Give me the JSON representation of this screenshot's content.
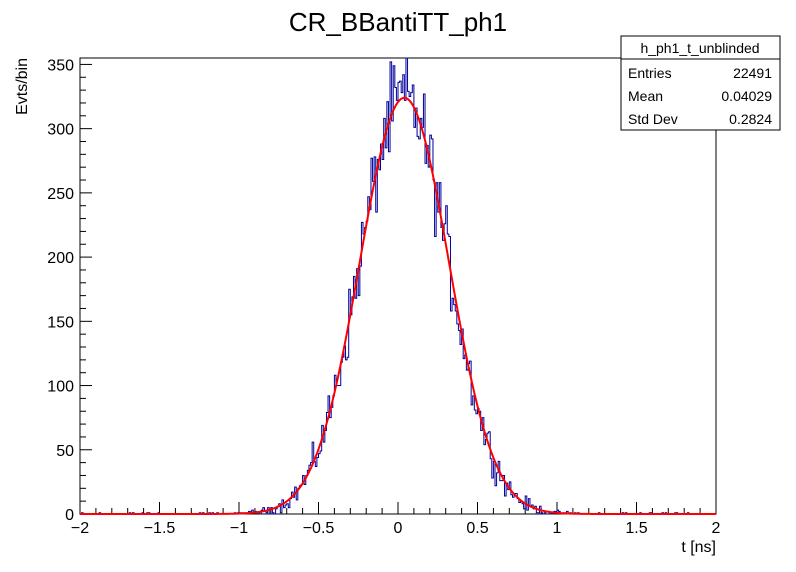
{
  "chart_data": {
    "type": "histogram",
    "title": "CR_BBantiTT_ph1",
    "xlabel": "t [ns]",
    "ylabel": "Evts/bin",
    "xlim": [
      -2,
      2
    ],
    "ylim": [
      0,
      355
    ],
    "x_ticks": [
      "−2",
      "−1.5",
      "−1",
      "−0.5",
      "0",
      "0.5",
      "1",
      "1.5",
      "2"
    ],
    "y_ticks": [
      "0",
      "50",
      "100",
      "150",
      "200",
      "250",
      "300",
      "350"
    ],
    "x_tick_values": [
      -2,
      -1.5,
      -1,
      -0.5,
      0,
      0.5,
      1,
      1.5,
      2
    ],
    "y_tick_values": [
      0,
      50,
      100,
      150,
      200,
      250,
      300,
      350
    ],
    "bins": 400,
    "series": [
      {
        "kind": "histogram",
        "color": "#000099",
        "peak_value": 356,
        "peak_x": 0.04
      },
      {
        "kind": "gaussian-fit",
        "color": "#ff0000",
        "amplitude": 324,
        "mean": 0.04,
        "sigma": 0.28
      }
    ],
    "stats_box": {
      "name": "h_ph1_t_unblinded",
      "rows": [
        {
          "label": "Entries",
          "value": "22491"
        },
        {
          "label": "Mean",
          "value": "0.04029"
        },
        {
          "label": "Std Dev",
          "value": "0.2824"
        }
      ]
    },
    "grid": false,
    "legend": "top-right"
  }
}
